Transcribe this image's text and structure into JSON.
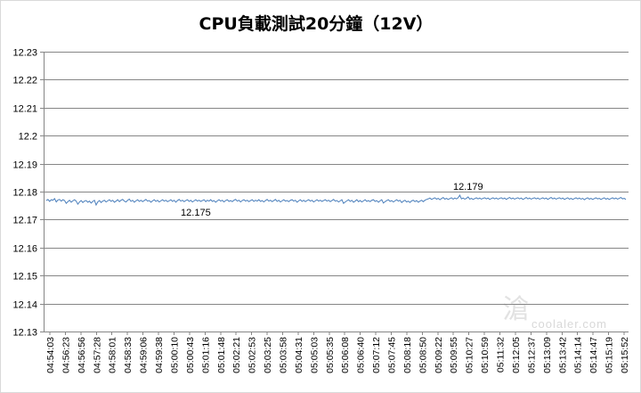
{
  "chart_data": {
    "type": "line",
    "title": "CPU負載測試20分鐘（12V）",
    "xlabel": "",
    "ylabel": "",
    "ylim": [
      12.13,
      12.23
    ],
    "y_ticks": [
      "12.23",
      "12.22",
      "12.21",
      "12.2",
      "12.19",
      "12.18",
      "12.17",
      "12.16",
      "12.15",
      "12.14",
      "12.13"
    ],
    "y_tick_values": [
      12.23,
      12.22,
      12.21,
      12.2,
      12.19,
      12.18,
      12.17,
      12.16,
      12.15,
      12.14,
      12.13
    ],
    "grid": "horizontal",
    "legend": "none",
    "x_ticks": [
      "04:54:03",
      "04:56:23",
      "04:56:56",
      "04:57:28",
      "04:58:01",
      "04:58:33",
      "04:59:06",
      "04:59:38",
      "05:00:10",
      "05:00:43",
      "05:01:16",
      "05:01:48",
      "05:02:21",
      "05:02:53",
      "05:03:25",
      "05:03:58",
      "05:04:31",
      "05:05:03",
      "05:05:35",
      "05:06:08",
      "05:06:40",
      "05:07:12",
      "05:07:45",
      "05:08:18",
      "05:08:50",
      "05:09:22",
      "05:09:55",
      "05:10:27",
      "05:10:59",
      "05:11:32",
      "05:12:05",
      "05:12:37",
      "05:13:09",
      "05:13:42",
      "05:14:14",
      "05:14:47",
      "05:15:19",
      "05:15:52"
    ],
    "series": [
      {
        "values": [
          12.1768,
          12.1772,
          12.1765,
          12.1771,
          12.1769,
          12.1775,
          12.1763,
          12.177,
          12.1772,
          12.1766,
          12.1771,
          12.1768,
          12.1758,
          12.1764,
          12.1769,
          12.1762,
          12.1767,
          12.1771,
          12.1766,
          12.1755,
          12.1763,
          12.1768,
          12.1761,
          12.1766,
          12.1768,
          12.1762,
          12.1766,
          12.1759,
          12.1765,
          12.1769,
          12.1752,
          12.1763,
          12.1768,
          12.1761,
          12.1766,
          12.1769,
          12.1763,
          12.1767,
          12.1771,
          12.1765,
          12.1769,
          12.1762,
          12.1766,
          12.1771,
          12.1764,
          12.1769,
          12.1772,
          12.1766,
          12.1763,
          12.1769,
          12.1773,
          12.1765,
          12.1769,
          12.1762,
          12.1767,
          12.1771,
          12.1765,
          12.1769,
          12.1764,
          12.1768,
          12.1772,
          12.1766,
          12.1768,
          12.1762,
          12.1767,
          12.1771,
          12.1765,
          12.1769,
          12.1763,
          12.1767,
          12.1771,
          12.1766,
          12.1769,
          12.1764,
          12.1767,
          12.1771,
          12.1765,
          12.1769,
          12.1762,
          12.1768,
          12.1772,
          12.1766,
          12.1769,
          12.1764,
          12.1768,
          12.1771,
          12.1765,
          12.1769,
          12.1763,
          12.1767,
          12.1771,
          12.1766,
          12.1769,
          12.1765,
          12.1768,
          12.1771,
          12.1764,
          12.1769,
          12.1766,
          12.1771,
          12.1765,
          12.1768,
          12.1762,
          12.1767,
          12.1771,
          12.1766,
          12.1769,
          12.1763,
          12.1768,
          12.1771,
          12.1765,
          12.1768,
          12.1764,
          12.1769,
          12.1772,
          12.1766,
          12.1769,
          12.1763,
          12.1768,
          12.1771,
          12.1766,
          12.1769,
          12.1764,
          12.1768,
          12.1771,
          12.1765,
          12.1769,
          12.1766,
          12.1771,
          12.1765,
          12.1768,
          12.1763,
          12.1768,
          12.1772,
          12.1766,
          12.1769,
          12.1764,
          12.1768,
          12.1772,
          12.1765,
          12.1769,
          12.1763,
          12.1767,
          12.1771,
          12.1766,
          12.1768,
          12.1764,
          12.1769,
          12.1771,
          12.1766,
          12.1769,
          12.1762,
          12.1767,
          12.1771,
          12.1765,
          12.1769,
          12.1764,
          12.1768,
          12.1771,
          12.1766,
          12.1769,
          12.1763,
          12.1767,
          12.1771,
          12.1766,
          12.1769,
          12.1765,
          12.1768,
          12.1771,
          12.1766,
          12.1769,
          12.1764,
          12.1768,
          12.1772,
          12.1766,
          12.1768,
          12.1763,
          12.1767,
          12.1771,
          12.1758,
          12.1763,
          12.1767,
          12.1771,
          12.1765,
          12.1769,
          12.1762,
          12.1766,
          12.1771,
          12.1764,
          12.1768,
          12.1763,
          12.1767,
          12.1771,
          12.1765,
          12.1768,
          12.1764,
          12.1769,
          12.1771,
          12.1765,
          12.1768,
          12.1762,
          12.1767,
          12.1771,
          12.1759,
          12.1764,
          12.1768,
          12.1771,
          12.1765,
          12.1768,
          12.1763,
          12.1767,
          12.1771,
          12.1766,
          12.1769,
          12.1761,
          12.1766,
          12.1769,
          12.1763,
          12.1766,
          12.1761,
          12.1767,
          12.1769,
          12.1764,
          12.1768,
          12.1762,
          12.1766,
          12.1769,
          12.1764,
          12.1769,
          12.1772,
          12.1774,
          12.1777,
          12.1772,
          12.1775,
          12.1778,
          12.1773,
          12.1776,
          12.1771,
          12.1775,
          12.1779,
          12.1773,
          12.1776,
          12.1772,
          12.1775,
          12.1778,
          12.1773,
          12.1777,
          12.1774,
          12.1778,
          12.1787,
          12.1774,
          12.1777,
          12.1773,
          12.1776,
          12.1781,
          12.1773,
          12.1776,
          12.1772,
          12.1775,
          12.1778,
          12.1774,
          12.1777,
          12.1773,
          12.1776,
          12.1778,
          12.1774,
          12.1777,
          12.1772,
          12.1775,
          12.1778,
          12.1774,
          12.1777,
          12.1773,
          12.1776,
          12.1778,
          12.1774,
          12.1777,
          12.1772,
          12.1776,
          12.1779,
          12.1774,
          12.1777,
          12.1773,
          12.1776,
          12.1778,
          12.1774,
          12.1777,
          12.1772,
          12.1775,
          12.1779,
          12.1774,
          12.1777,
          12.1773,
          12.1776,
          12.1778,
          12.1774,
          12.1777,
          12.1773,
          12.1775,
          12.1778,
          12.1774,
          12.1777,
          12.1772,
          12.1776,
          12.1779,
          12.1774,
          12.1777,
          12.1773,
          12.1776,
          12.1778,
          12.1774,
          12.1777,
          12.1772,
          12.1775,
          12.1778,
          12.1773,
          12.1776,
          12.1772,
          12.1775,
          12.1778,
          12.1774,
          12.1777,
          12.1773,
          12.1776,
          12.1771,
          12.1775,
          12.1778,
          12.1773,
          12.1776,
          12.1772,
          12.1775,
          12.1778,
          12.1774,
          12.1776,
          12.1772,
          12.1775,
          12.1778,
          12.1773,
          12.1776,
          12.1772,
          12.1775,
          12.1778,
          12.1774,
          12.1777,
          12.1773,
          12.1776,
          12.1779,
          12.1774,
          12.1776,
          12.1772
        ]
      }
    ],
    "annotations": [
      {
        "text": "12.175",
        "x_index": 90,
        "value": 12.1752
      },
      {
        "text": "12.179",
        "x_index": 254,
        "value": 12.1787
      }
    ],
    "colors": {
      "series": "#4a7ebb",
      "grid": "#868686",
      "frame": "#d9d9d9"
    }
  },
  "watermark": {
    "glyph": "滄",
    "text": "coolaler.com"
  }
}
